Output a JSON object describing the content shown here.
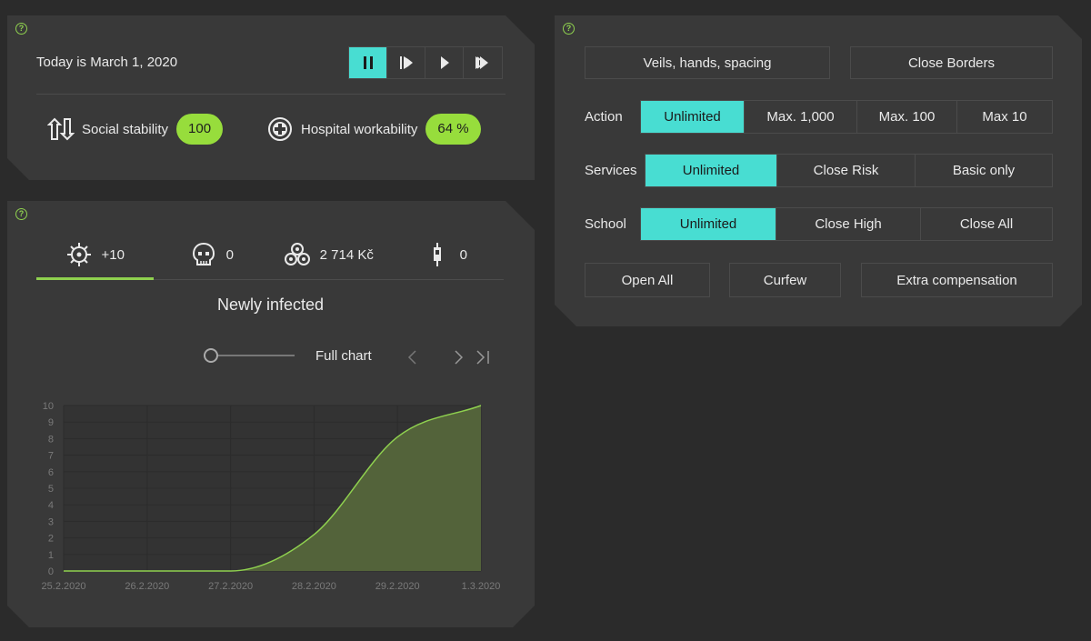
{
  "status": {
    "date_text": "Today is March 1, 2020",
    "speed_buttons": [
      "pause",
      "play-slow",
      "play",
      "play-fast"
    ],
    "social_label": "Social stability",
    "social_value": "100",
    "hospital_label": "Hospital workability",
    "hospital_value": "64 %"
  },
  "stats_tabs": [
    {
      "icon": "virus-icon",
      "value": "+10"
    },
    {
      "icon": "skull-icon",
      "value": "0"
    },
    {
      "icon": "coins-icon",
      "value": "2 714 Kč"
    },
    {
      "icon": "syringe-icon",
      "value": "0"
    }
  ],
  "chart_view": {
    "title": "Newly infected",
    "full_chart_label": "Full chart"
  },
  "chart_data": {
    "type": "area",
    "x": [
      "25.2.2020",
      "26.2.2020",
      "27.2.2020",
      "28.2.2020",
      "29.2.2020",
      "1.3.2020"
    ],
    "values": [
      0,
      0,
      0,
      2.2,
      8.1,
      10
    ],
    "ylim": [
      0,
      10
    ],
    "yticks": [
      0,
      1,
      2,
      3,
      4,
      5,
      6,
      7,
      8,
      9,
      10
    ],
    "grid": true,
    "line_color": "#8fd14f",
    "fill_color": "#53633a"
  },
  "controls": {
    "top_buttons": [
      "Veils, hands, spacing",
      "Close Borders"
    ],
    "action_label": "Action",
    "action_options": [
      "Unlimited",
      "Max. 1,000",
      "Max. 100",
      "Max 10"
    ],
    "services_label": "Services",
    "services_options": [
      "Unlimited",
      "Close Risk",
      "Basic only"
    ],
    "school_label": "School",
    "school_options": [
      "Unlimited",
      "Close High",
      "Close All"
    ],
    "bottom_buttons": [
      "Open All",
      "Curfew",
      "Extra compensation"
    ]
  },
  "colors": {
    "accent": "#48ddd2",
    "green": "#97dd3c",
    "panel": "#393939",
    "background": "#2b2b2b"
  }
}
